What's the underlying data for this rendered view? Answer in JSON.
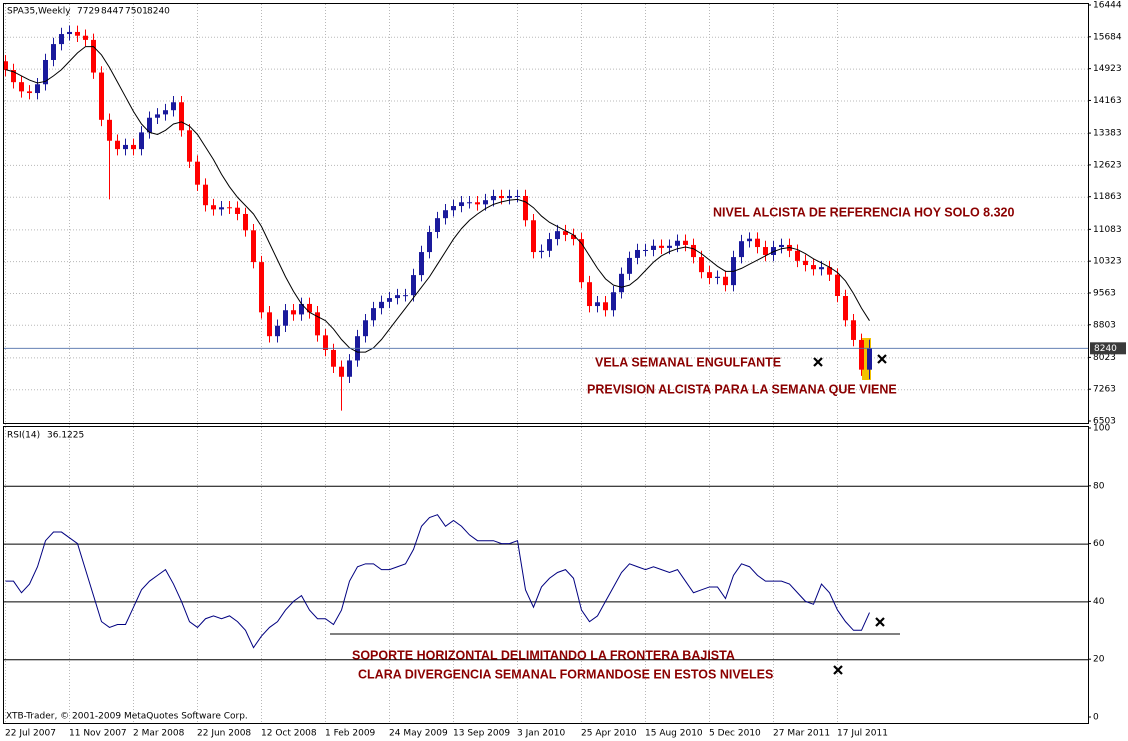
{
  "chart_data": [
    {
      "type": "candlestick",
      "symbol": "SPA35,Weekly",
      "categories": [
        "22 Jul 2007",
        null,
        null,
        null,
        null,
        null,
        null,
        null,
        "11 Nov 2007",
        null,
        null,
        null,
        null,
        null,
        null,
        null,
        "2 Mar 2008",
        null,
        null,
        null,
        null,
        null,
        null,
        null,
        "22 Jun 2008",
        null,
        null,
        null,
        null,
        null,
        null,
        null,
        "12 Oct 2008",
        null,
        null,
        null,
        null,
        null,
        null,
        null,
        "1 Feb 2009",
        null,
        null,
        null,
        null,
        null,
        null,
        null,
        "24 May 2009",
        null,
        null,
        null,
        null,
        null,
        null,
        null,
        "13 Sep 2009",
        null,
        null,
        null,
        null,
        null,
        null,
        null,
        "3 Jan 2010",
        null,
        null,
        null,
        null,
        null,
        null,
        null,
        "25 Apr 2010",
        null,
        null,
        null,
        null,
        null,
        null,
        null,
        "15 Aug 2010",
        null,
        null,
        null,
        null,
        null,
        null,
        null,
        "5 Dec 2010",
        null,
        null,
        null,
        null,
        null,
        null,
        null,
        "27 Mar 2011",
        null,
        null,
        null,
        null,
        null,
        null,
        null,
        "17 Jul 2011",
        null,
        null,
        null,
        null
      ],
      "open": [
        15100,
        14890,
        14600,
        14380,
        14340,
        14550,
        15130,
        15510,
        15750,
        15800,
        15710,
        15610,
        14830,
        13700,
        13200,
        13000,
        13100,
        13000,
        13400,
        13750,
        13830,
        13930,
        14120,
        13450,
        12700,
        12150,
        11660,
        11560,
        11610,
        11600,
        11450,
        11060,
        10300,
        9100,
        8530,
        8780,
        9150,
        9050,
        9300,
        9100,
        8550,
        8200,
        7800,
        7560,
        7950,
        8530,
        8910,
        9200,
        9350,
        9440,
        9510,
        9510,
        9990,
        10540,
        11020,
        11350,
        11540,
        11640,
        11730,
        11730,
        11680,
        11780,
        11880,
        11830,
        11880,
        11880,
        11300,
        10540,
        10570,
        10850,
        11040,
        10950,
        10850,
        9820,
        9250,
        9340,
        9150,
        9580,
        10020,
        10400,
        10590,
        10590,
        10690,
        10640,
        10690,
        10810,
        10710,
        10420,
        10060,
        9920,
        9950,
        9750,
        10420,
        10800,
        10860,
        10660,
        10470,
        10660,
        10710,
        10570,
        10330,
        10230,
        10130,
        10180,
        10000,
        9490,
        8910,
        8440,
        7729
      ],
      "high": [
        15250,
        15040,
        14750,
        14530,
        14700,
        15280,
        15660,
        15900,
        15950,
        15950,
        15860,
        15760,
        14980,
        13850,
        13350,
        13250,
        13250,
        13550,
        13900,
        13980,
        14080,
        14270,
        14270,
        13600,
        12850,
        12300,
        11810,
        11760,
        11760,
        11750,
        11600,
        11210,
        10450,
        9250,
        8930,
        9300,
        9300,
        9450,
        9450,
        9250,
        8700,
        8350,
        7950,
        8100,
        8680,
        9060,
        9350,
        9500,
        9590,
        9660,
        9660,
        10140,
        10690,
        11170,
        11500,
        11690,
        11790,
        11880,
        11880,
        11880,
        11930,
        12030,
        12030,
        12030,
        12030,
        12030,
        11450,
        10720,
        11000,
        11190,
        11190,
        11100,
        11000,
        9970,
        9490,
        9490,
        9730,
        10170,
        10550,
        10740,
        10740,
        10840,
        10840,
        10840,
        10960,
        10960,
        10860,
        10570,
        10210,
        10100,
        10100,
        10570,
        10950,
        11010,
        11010,
        10810,
        10810,
        10860,
        10860,
        10720,
        10480,
        10380,
        10330,
        10330,
        10150,
        9640,
        9060,
        8590,
        8447
      ],
      "low": [
        14740,
        14450,
        14230,
        14190,
        14190,
        14400,
        14980,
        15360,
        15600,
        15560,
        15460,
        14680,
        13550,
        11800,
        12850,
        12850,
        12850,
        12850,
        13250,
        13600,
        13680,
        13780,
        13300,
        12550,
        12000,
        11510,
        11410,
        11410,
        11450,
        11300,
        10910,
        10150,
        8950,
        8380,
        8380,
        8630,
        8900,
        8900,
        8950,
        8400,
        8050,
        7650,
        6750,
        7410,
        7800,
        8380,
        8760,
        9050,
        9200,
        9290,
        9360,
        9360,
        9840,
        10390,
        10870,
        11200,
        11390,
        11490,
        11580,
        11530,
        11530,
        11630,
        11680,
        11680,
        11730,
        11150,
        10390,
        10390,
        10420,
        10700,
        10800,
        10700,
        9670,
        9100,
        9100,
        9000,
        9000,
        9430,
        9870,
        10250,
        10440,
        10440,
        10490,
        10490,
        10540,
        10560,
        10270,
        9910,
        9770,
        9770,
        9600,
        9600,
        10270,
        10650,
        10510,
        10320,
        10320,
        10510,
        10420,
        10180,
        10080,
        9980,
        9980,
        9850,
        9340,
        8760,
        8290,
        7580,
        7501
      ],
      "close": [
        14890,
        14600,
        14380,
        14340,
        14550,
        15130,
        15510,
        15750,
        15800,
        15710,
        15610,
        14830,
        13700,
        13200,
        13000,
        13100,
        13000,
        13400,
        13750,
        13830,
        13930,
        14120,
        13450,
        12700,
        12150,
        11660,
        11560,
        11610,
        11600,
        11450,
        11060,
        10300,
        9100,
        8530,
        8780,
        9150,
        9050,
        9300,
        9100,
        8550,
        8200,
        7800,
        7560,
        7950,
        8530,
        8910,
        9200,
        9350,
        9440,
        9510,
        9510,
        9990,
        10540,
        11020,
        11350,
        11540,
        11640,
        11730,
        11730,
        11680,
        11780,
        11880,
        11830,
        11880,
        11880,
        11300,
        10540,
        10570,
        10850,
        11040,
        10950,
        10850,
        9820,
        9250,
        9340,
        9150,
        9580,
        10020,
        10400,
        10590,
        10590,
        10690,
        10640,
        10690,
        10810,
        10710,
        10420,
        10060,
        9920,
        9950,
        9750,
        10420,
        10800,
        10860,
        10660,
        10470,
        10660,
        10710,
        10570,
        10330,
        10230,
        10130,
        10180,
        10000,
        9490,
        8910,
        8440,
        7730,
        8240
      ],
      "ma": [
        14900,
        14850,
        14750,
        14650,
        14580,
        14620,
        14750,
        14900,
        15100,
        15300,
        15450,
        15450,
        15250,
        14950,
        14600,
        14250,
        13900,
        13600,
        13400,
        13350,
        13450,
        13600,
        13650,
        13550,
        13350,
        13050,
        12750,
        12400,
        12100,
        11850,
        11650,
        11450,
        11150,
        10750,
        10350,
        9950,
        9600,
        9300,
        9100,
        9000,
        8900,
        8700,
        8450,
        8250,
        8150,
        8150,
        8250,
        8450,
        8700,
        8950,
        9200,
        9450,
        9700,
        9950,
        10250,
        10550,
        10850,
        11100,
        11300,
        11450,
        11580,
        11680,
        11740,
        11780,
        11800,
        11740,
        11600,
        11400,
        11250,
        11150,
        11050,
        10950,
        10750,
        10450,
        10150,
        9900,
        9750,
        9700,
        9750,
        9900,
        10100,
        10300,
        10450,
        10550,
        10620,
        10660,
        10620,
        10500,
        10350,
        10200,
        10080,
        10080,
        10150,
        10250,
        10350,
        10450,
        10550,
        10620,
        10650,
        10600,
        10500,
        10380,
        10280,
        10180,
        10050,
        9850,
        9550,
        9200,
        8900
      ],
      "up_color": "#1a1a9c",
      "down_color": "#ff0000",
      "ma_color": "#000000",
      "price_line_color": "#4f6fa8",
      "ylim": [
        6503,
        16444
      ],
      "yticks": [
        16444,
        15684,
        14923,
        14163,
        13383,
        12623,
        11863,
        11083,
        10323,
        9563,
        8803,
        8023,
        7263,
        6503
      ],
      "grid": true,
      "annotations": [
        "NIVEL ALCISTA DE REFERENCIA HOY SOLO 8.320",
        "VELA SEMANAL ENGULFANTE",
        "PREVISION ALCISTA PARA LA SEMANA QUE VIENE"
      ]
    },
    {
      "type": "line",
      "title": "RSI(14)",
      "values": [
        47,
        47,
        43,
        46,
        52,
        61,
        64,
        64,
        62,
        60,
        51,
        42,
        33,
        31,
        32,
        32,
        38,
        44,
        47,
        49,
        51,
        46,
        40,
        33,
        31,
        34,
        35,
        34,
        35,
        33,
        30,
        24,
        28,
        31,
        33,
        37,
        40,
        42,
        37,
        34,
        34,
        32,
        37,
        47,
        52,
        53,
        53,
        51,
        51,
        52,
        53,
        58,
        66,
        69,
        70,
        66,
        68,
        66,
        63,
        61,
        61,
        61,
        60,
        60,
        61,
        44,
        38,
        45,
        48,
        50,
        51,
        48,
        37,
        33,
        35,
        40,
        45,
        50,
        53,
        52,
        51,
        52,
        51,
        50,
        51,
        47,
        43,
        44,
        45,
        45,
        41,
        49,
        53,
        52,
        49,
        47,
        47,
        47,
        46,
        43,
        40,
        39,
        46,
        43,
        37,
        33,
        30,
        30,
        36.1225
      ],
      "color": "#000080",
      "ylim": [
        0,
        100
      ],
      "yticks": [
        0,
        20,
        40,
        60,
        80,
        100
      ],
      "grid": true,
      "annotations": [
        "SOPORTE HORIZONTAL DELIMITANDO LA FRONTERA BAJISTA",
        "CLARA DIVERGENCIA SEMANAL FORMANDOSE EN ESTOS NIVELES"
      ]
    }
  ],
  "footer": "XTB-Trader, © 2001-2009 MetaQuotes Software Corp."
}
